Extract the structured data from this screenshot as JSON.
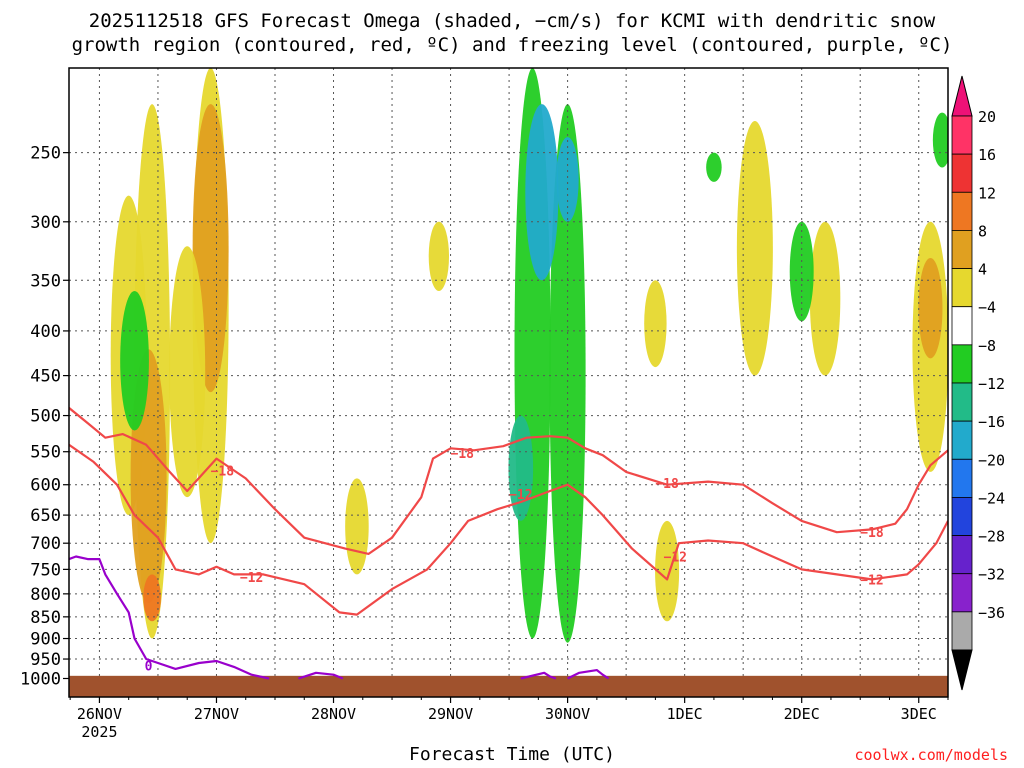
{
  "title_line1": "2025112518 GFS Forecast Omega (shaded, −cm/s) for KCMI with dendritic snow",
  "title_line2": "growth region (contoured, red, ºC) and freezing level (contoured, purple, ºC)",
  "xlabel": "Forecast Time (UTC)",
  "credit": "coolwx.com/models",
  "chart_data": {
    "type": "heatmap",
    "xlabel": "Forecast Time (UTC)",
    "ylabel": "",
    "y_scale": "log-pressure",
    "y_inverted": true,
    "ylim": [
      1050,
      200
    ],
    "y_ticks": [
      250,
      300,
      350,
      400,
      450,
      500,
      550,
      600,
      650,
      700,
      750,
      800,
      850,
      900,
      950,
      1000
    ],
    "x_range_days": [
      25.74,
      33.25
    ],
    "x_ticks": [
      {
        "label": "26NOV",
        "day": 26,
        "sub": "2025"
      },
      {
        "label": "27NOV",
        "day": 27
      },
      {
        "label": "28NOV",
        "day": 28
      },
      {
        "label": "29NOV",
        "day": 29
      },
      {
        "label": "30NOV",
        "day": 30
      },
      {
        "label": "1DEC",
        "day": 31
      },
      {
        "label": "2DEC",
        "day": 32
      },
      {
        "label": "3DEC",
        "day": 33
      }
    ],
    "grid": true,
    "colorbar": {
      "labels": [
        "20",
        "16",
        "12",
        "8",
        "4",
        "−4",
        "−8",
        "−12",
        "−16",
        "−20",
        "−24",
        "−28",
        "−32",
        "−36"
      ],
      "bins": [
        "#ff3366",
        "#ee3333",
        "#ee7722",
        "#e0a020",
        "#e6d82e",
        "#ffffff",
        "#22cc22",
        "#22bb88",
        "#22aacc",
        "#2277ee",
        "#2244dd",
        "#6622cc",
        "#8822cc",
        "#aaaaaa"
      ],
      "top_arrow": "#ee1177",
      "bottom_arrow": "#000000"
    },
    "shaded_regions": [
      {
        "level": 4,
        "color": "#e6d82e",
        "day": 26.45,
        "p": [
          220,
          900
        ]
      },
      {
        "level": 4,
        "color": "#e6d82e",
        "day": 26.25,
        "p": [
          280,
          650
        ]
      },
      {
        "level": 8,
        "color": "#e0a020",
        "day": 26.42,
        "p": [
          420,
          820
        ]
      },
      {
        "level": 12,
        "color": "#ee7722",
        "day": 26.45,
        "p": [
          760,
          860
        ]
      },
      {
        "level": 4,
        "color": "#e6d82e",
        "day": 26.95,
        "p": [
          200,
          700
        ]
      },
      {
        "level": 8,
        "color": "#e0a020",
        "day": 26.95,
        "p": [
          220,
          470
        ]
      },
      {
        "level": 4,
        "color": "#e6d82e",
        "day": 26.75,
        "p": [
          320,
          620
        ]
      },
      {
        "level": 4,
        "color": "#e6d82e",
        "day": 28.2,
        "p": [
          590,
          760
        ]
      },
      {
        "level": 4,
        "color": "#e6d82e",
        "day": 28.9,
        "p": [
          300,
          360
        ]
      },
      {
        "level": 4,
        "color": "#e6d82e",
        "day": 31.6,
        "p": [
          230,
          450
        ]
      },
      {
        "level": 4,
        "color": "#e6d82e",
        "day": 32.2,
        "p": [
          300,
          450
        ]
      },
      {
        "level": 4,
        "color": "#e6d82e",
        "day": 33.1,
        "p": [
          300,
          580
        ]
      },
      {
        "level": 8,
        "color": "#e0a020",
        "day": 33.1,
        "p": [
          330,
          430
        ]
      },
      {
        "level": 4,
        "color": "#e6d82e",
        "day": 30.75,
        "p": [
          350,
          440
        ]
      },
      {
        "level": 4,
        "color": "#e6d82e",
        "day": 30.85,
        "p": [
          660,
          860
        ]
      },
      {
        "level": -4,
        "color": "#22cc22",
        "day": 29.7,
        "p": [
          200,
          900
        ]
      },
      {
        "level": -4,
        "color": "#22cc22",
        "day": 30.0,
        "p": [
          220,
          910
        ]
      },
      {
        "level": -12,
        "color": "#22aacc",
        "day": 29.78,
        "p": [
          220,
          350
        ]
      },
      {
        "level": -12,
        "color": "#22aacc",
        "day": 30.0,
        "p": [
          240,
          300
        ]
      },
      {
        "level": -8,
        "color": "#22bb88",
        "day": 29.6,
        "p": [
          500,
          660
        ]
      },
      {
        "level": -4,
        "color": "#22cc22",
        "day": 26.3,
        "p": [
          360,
          520
        ]
      },
      {
        "level": -4,
        "color": "#22cc22",
        "day": 31.25,
        "p": [
          250,
          270
        ]
      },
      {
        "level": -4,
        "color": "#22cc22",
        "day": 32.0,
        "p": [
          300,
          390
        ]
      },
      {
        "level": -4,
        "color": "#22cc22",
        "day": 33.2,
        "p": [
          225,
          260
        ]
      }
    ],
    "series": [
      {
        "name": "−18",
        "color": "#f04848",
        "points": [
          [
            25.74,
            490
          ],
          [
            25.9,
            510
          ],
          [
            26.05,
            530
          ],
          [
            26.2,
            525
          ],
          [
            26.4,
            540
          ],
          [
            26.6,
            580
          ],
          [
            26.75,
            610
          ],
          [
            27.0,
            560
          ],
          [
            27.25,
            590
          ],
          [
            27.5,
            640
          ],
          [
            27.75,
            690
          ],
          [
            28.1,
            710
          ],
          [
            28.3,
            720
          ],
          [
            28.5,
            690
          ],
          [
            28.75,
            620
          ],
          [
            28.85,
            560
          ],
          [
            29.0,
            545
          ],
          [
            29.2,
            548
          ],
          [
            29.45,
            542
          ],
          [
            29.65,
            530
          ],
          [
            29.85,
            528
          ],
          [
            30.0,
            530
          ],
          [
            30.15,
            545
          ],
          [
            30.3,
            555
          ],
          [
            30.5,
            580
          ],
          [
            30.85,
            600
          ],
          [
            31.2,
            595
          ],
          [
            31.5,
            600
          ],
          [
            31.75,
            630
          ],
          [
            32.0,
            660
          ],
          [
            32.3,
            680
          ],
          [
            32.6,
            675
          ],
          [
            32.8,
            665
          ],
          [
            32.9,
            640
          ],
          [
            33.0,
            600
          ],
          [
            33.1,
            570
          ],
          [
            33.25,
            548
          ]
        ],
        "labels": [
          {
            "day": 27.05,
            "p": 578,
            "text": "−18"
          },
          {
            "day": 29.1,
            "p": 552,
            "text": "−18"
          },
          {
            "day": 30.85,
            "p": 597,
            "text": "−18"
          },
          {
            "day": 32.6,
            "p": 680,
            "text": "−18"
          }
        ]
      },
      {
        "name": "−12",
        "color": "#f04848",
        "points": [
          [
            25.74,
            540
          ],
          [
            25.95,
            565
          ],
          [
            26.15,
            600
          ],
          [
            26.3,
            650
          ],
          [
            26.5,
            690
          ],
          [
            26.65,
            750
          ],
          [
            26.85,
            760
          ],
          [
            27.0,
            745
          ],
          [
            27.15,
            760
          ],
          [
            27.4,
            760
          ],
          [
            27.75,
            780
          ],
          [
            28.05,
            840
          ],
          [
            28.2,
            845
          ],
          [
            28.5,
            790
          ],
          [
            28.8,
            750
          ],
          [
            29.0,
            700
          ],
          [
            29.15,
            660
          ],
          [
            29.4,
            640
          ],
          [
            29.6,
            628
          ],
          [
            29.85,
            610
          ],
          [
            30.0,
            600
          ],
          [
            30.15,
            620
          ],
          [
            30.3,
            650
          ],
          [
            30.55,
            710
          ],
          [
            30.85,
            770
          ],
          [
            30.95,
            700
          ],
          [
            31.2,
            695
          ],
          [
            31.5,
            700
          ],
          [
            31.7,
            720
          ],
          [
            32.0,
            750
          ],
          [
            32.3,
            760
          ],
          [
            32.6,
            770
          ],
          [
            32.9,
            760
          ],
          [
            33.0,
            740
          ],
          [
            33.15,
            700
          ],
          [
            33.25,
            660
          ]
        ],
        "labels": [
          {
            "day": 27.3,
            "p": 765,
            "text": "−12"
          },
          {
            "day": 29.6,
            "p": 615,
            "text": "−12"
          },
          {
            "day": 30.92,
            "p": 725,
            "text": "−12"
          },
          {
            "day": 32.6,
            "p": 770,
            "text": "−12"
          }
        ]
      },
      {
        "name": "0",
        "color": "#9900cc",
        "points": [
          [
            25.74,
            730
          ],
          [
            25.8,
            725
          ],
          [
            25.9,
            730
          ],
          [
            26.0,
            730
          ],
          [
            26.05,
            760
          ],
          [
            26.15,
            800
          ],
          [
            26.25,
            840
          ],
          [
            26.3,
            900
          ],
          [
            26.4,
            950
          ],
          [
            26.5,
            960
          ],
          [
            26.65,
            975
          ],
          [
            26.85,
            960
          ],
          [
            27.0,
            955
          ],
          [
            27.15,
            970
          ],
          [
            27.3,
            990
          ],
          [
            27.45,
            1000
          ]
        ],
        "labels": [
          {
            "day": 26.42,
            "p": 966,
            "text": "0"
          }
        ]
      },
      {
        "name": "0",
        "color": "#9900cc",
        "points": [
          [
            27.7,
            1000
          ],
          [
            27.85,
            985
          ],
          [
            28.0,
            990
          ],
          [
            28.08,
            1000
          ]
        ],
        "labels": []
      },
      {
        "name": "0",
        "color": "#9900cc",
        "points": [
          [
            29.6,
            1000
          ],
          [
            29.8,
            985
          ],
          [
            29.85,
            995
          ],
          [
            29.9,
            1000
          ]
        ],
        "labels": []
      },
      {
        "name": "0",
        "color": "#9900cc",
        "points": [
          [
            30.0,
            1000
          ],
          [
            30.1,
            985
          ],
          [
            30.25,
            978
          ],
          [
            30.3,
            990
          ],
          [
            30.35,
            1000
          ]
        ],
        "labels": []
      }
    ],
    "ground_fill_color": "#a0522d",
    "ground_top_p": 993
  }
}
